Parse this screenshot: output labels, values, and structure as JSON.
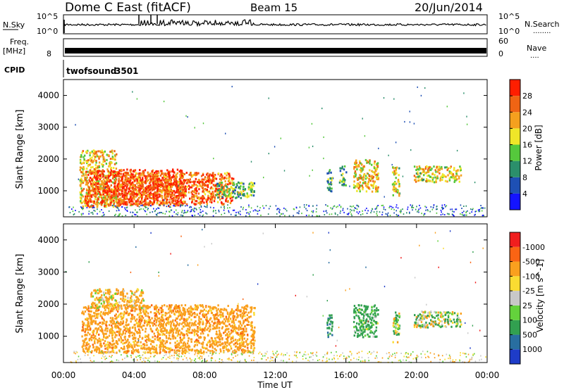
{
  "header": {
    "site": "Dome C East (fitACF)",
    "beam": "Beam 15",
    "date": "20/Jun/2014"
  },
  "nsky_panel": {
    "label": "N.Sky",
    "left_ticks": [
      "10^5",
      "10^0"
    ],
    "right_ticks": [
      "10^5",
      "10^0"
    ],
    "right_label": "N.Search",
    "right_dots": "........"
  },
  "freq_panel": {
    "label_top": "Freq.",
    "label_bottom": "[MHz]",
    "left_tick": "8",
    "right_ticks": [
      "60",
      "0"
    ],
    "right_label": "Nave",
    "right_dots": "...."
  },
  "cpid_panel": {
    "label": "CPID",
    "program": "twofsound",
    "program_id": "3501"
  },
  "chart_data": [
    {
      "type": "heatmap",
      "name": "power",
      "ylabel": "Slant Range [km]",
      "ylim": [
        180,
        4500
      ],
      "y_ticks": [
        1000,
        2000,
        3000,
        4000
      ],
      "colorbar_label": "Power [dB]",
      "colorbar_ticks": [
        "4",
        "8",
        "12",
        "16",
        "20",
        "24",
        "28"
      ],
      "colorbar_colors": [
        "#1414ff",
        "#1e50b4",
        "#2b8f6b",
        "#55c83c",
        "#f0e628",
        "#f5a01e",
        "#f06414",
        "#ff1e00"
      ],
      "blobs": [
        {
          "t": [
            0.9,
            3.0
          ],
          "r": [
            500,
            2300
          ],
          "power": 18
        },
        {
          "t": [
            1.2,
            6.8
          ],
          "r": [
            550,
            1700
          ],
          "power": 26
        },
        {
          "t": [
            3.0,
            9.6
          ],
          "r": [
            600,
            1600
          ],
          "power": 24
        },
        {
          "t": [
            8.6,
            10.8
          ],
          "r": [
            800,
            1300
          ],
          "power": 12
        },
        {
          "t": [
            14.9,
            15.2
          ],
          "r": [
            1000,
            1700
          ],
          "power": 10
        },
        {
          "t": [
            15.6,
            16.0
          ],
          "r": [
            1200,
            1800
          ],
          "power": 8
        },
        {
          "t": [
            16.4,
            17.8
          ],
          "r": [
            1000,
            2000
          ],
          "power": 18
        },
        {
          "t": [
            18.6,
            19.0
          ],
          "r": [
            800,
            1800
          ],
          "power": 16
        },
        {
          "t": [
            19.8,
            22.5
          ],
          "r": [
            1300,
            1800
          ],
          "power": 16
        }
      ]
    },
    {
      "type": "heatmap",
      "name": "velocity",
      "ylabel": "Slant Range [km]",
      "ylim": [
        180,
        4500
      ],
      "y_ticks": [
        1000,
        2000,
        3000,
        4000
      ],
      "x_ticks": [
        "00:00",
        "04:00",
        "08:00",
        "12:00",
        "16:00",
        "20:00",
        "00:00"
      ],
      "xlabel": "Time UT",
      "colorbar_label": "Velocity [m s^-1]",
      "colorbar_ticks": [
        "1000",
        "500",
        "100",
        "25",
        "-25",
        "-100",
        "-500",
        "-1000"
      ],
      "colorbar_colors": [
        "#1e3cc8",
        "#286ea0",
        "#32a050",
        "#64d23c",
        "#c8c8c8",
        "#fadc32",
        "#faa01e",
        "#fa6414",
        "#f01e1e"
      ],
      "blobs": [
        {
          "t": [
            1.0,
            10.8
          ],
          "r": [
            500,
            2000
          ],
          "velocity": -300
        },
        {
          "t": [
            1.5,
            4.5
          ],
          "r": [
            1900,
            2500
          ],
          "velocity": -150
        },
        {
          "t": [
            14.9,
            15.2
          ],
          "r": [
            1000,
            1700
          ],
          "velocity": 400
        },
        {
          "t": [
            16.4,
            17.8
          ],
          "r": [
            1000,
            2000
          ],
          "velocity": 200
        },
        {
          "t": [
            18.6,
            19.0
          ],
          "r": [
            800,
            1800
          ],
          "velocity": 100
        },
        {
          "t": [
            19.8,
            22.5
          ],
          "r": [
            1300,
            1800
          ],
          "velocity": 50
        }
      ]
    }
  ]
}
